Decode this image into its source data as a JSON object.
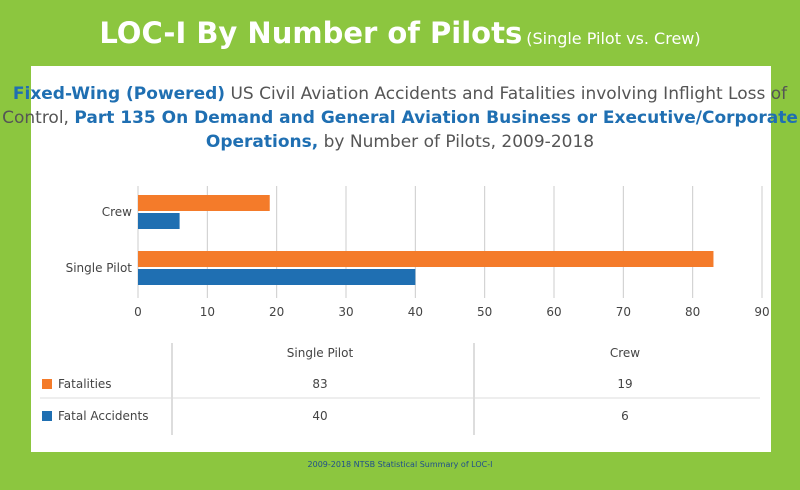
{
  "header": {
    "title": "LOC-I By Number of Pilots",
    "subtitle": "(Single Pilot vs. Crew)"
  },
  "chart_title": {
    "part1": "Fixed-Wing (Powered)",
    "part2": " US Civil Aviation Accidents and Fatalities involving Inflight Loss of Control, ",
    "part3": "Part 135 On Demand and General Aviation Business or Executive/Corporate Operations,",
    "part4": " by Number of Pilots, 2009-2018"
  },
  "colors": {
    "background": "#8cc63f",
    "fatalities": "#f47b2a",
    "fatal_accidents": "#1f6fb2",
    "grid": "#cccccc",
    "text": "#444444"
  },
  "chart_data": {
    "type": "bar",
    "orientation": "horizontal",
    "categories": [
      "Crew",
      "Single Pilot"
    ],
    "series": [
      {
        "name": "Fatalities",
        "values": [
          19,
          83
        ]
      },
      {
        "name": "Fatal Accidents",
        "values": [
          6,
          40
        ]
      }
    ],
    "xlim": [
      0,
      90
    ],
    "xticks": [
      "0",
      "10",
      "20",
      "30",
      "40",
      "50",
      "60",
      "70",
      "80",
      "90"
    ],
    "grid": "vertical"
  },
  "table": {
    "columns": [
      "Single Pilot",
      "Crew"
    ],
    "rows": [
      {
        "label": "Fatalities",
        "values": [
          "83",
          "19"
        ]
      },
      {
        "label": "Fatal Accidents",
        "values": [
          "40",
          "6"
        ]
      }
    ]
  },
  "footer": "2009-2018 NTSB Statistical Summary of LOC-I"
}
